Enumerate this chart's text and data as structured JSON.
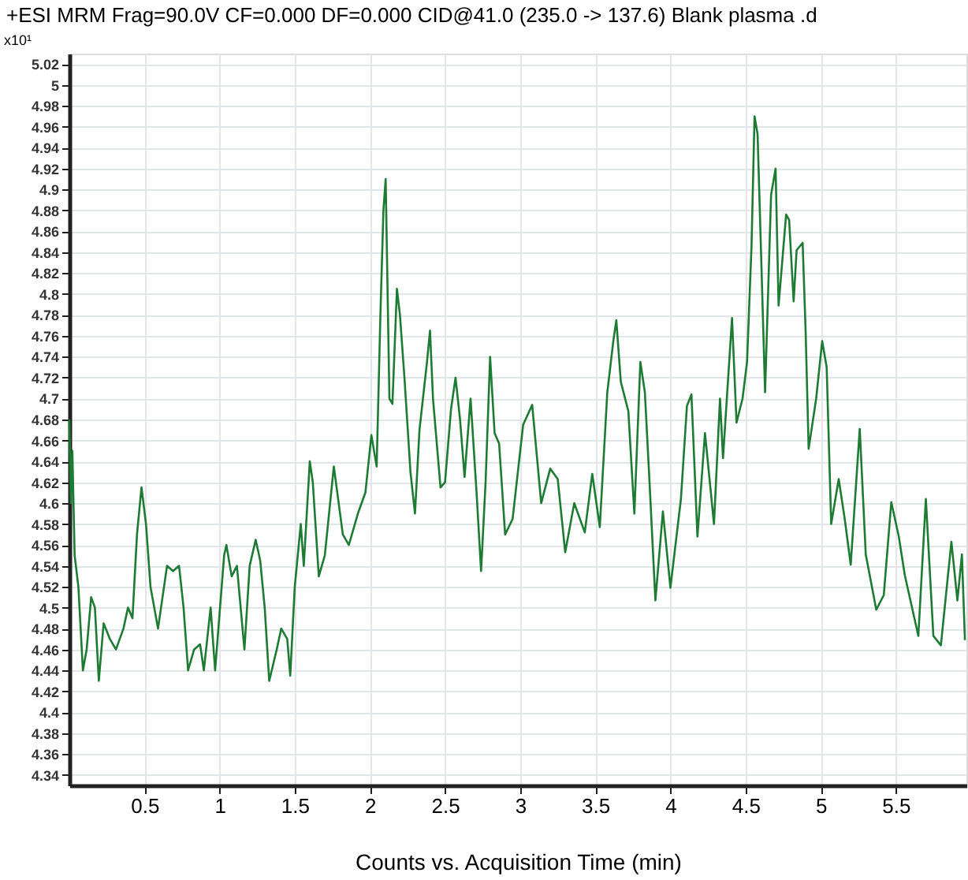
{
  "chart_data": {
    "type": "line",
    "title": "+ESI MRM Frag=90.0V CF=0.000 DF=0.000 CID@41.0 (235.0 -> 137.6) Blank plasma .d",
    "xlabel": "Counts vs. Acquisition Time (min)",
    "ylabel": "x10¹",
    "x": [
      0.0,
      0.01,
      0.02,
      0.035,
      0.06,
      0.09,
      0.115,
      0.145,
      0.17,
      0.196,
      0.228,
      0.27,
      0.31,
      0.36,
      0.39,
      0.42,
      0.45,
      0.48,
      0.51,
      0.54,
      0.59,
      0.65,
      0.69,
      0.73,
      0.76,
      0.79,
      0.83,
      0.87,
      0.895,
      0.94,
      0.97,
      1.03,
      1.045,
      1.08,
      1.115,
      1.165,
      1.2,
      1.24,
      1.27,
      1.3,
      1.33,
      1.38,
      1.41,
      1.45,
      1.47,
      1.5,
      1.54,
      1.56,
      1.6,
      1.62,
      1.66,
      1.7,
      1.76,
      1.82,
      1.86,
      1.92,
      1.97,
      2.01,
      2.045,
      2.07,
      2.09,
      2.105,
      2.13,
      2.15,
      2.18,
      2.2,
      2.23,
      2.27,
      2.3,
      2.33,
      2.38,
      2.4,
      2.42,
      2.47,
      2.5,
      2.54,
      2.57,
      2.6,
      2.63,
      2.67,
      2.71,
      2.74,
      2.77,
      2.8,
      2.83,
      2.86,
      2.9,
      2.95,
      3.02,
      3.08,
      3.14,
      3.2,
      3.25,
      3.3,
      3.36,
      3.43,
      3.48,
      3.53,
      3.58,
      3.62,
      3.64,
      3.67,
      3.72,
      3.76,
      3.8,
      3.83,
      3.86,
      3.9,
      3.95,
      4.0,
      4.07,
      4.11,
      4.14,
      4.18,
      4.23,
      4.29,
      4.33,
      4.35,
      4.41,
      4.44,
      4.48,
      4.51,
      4.54,
      4.56,
      4.58,
      4.6,
      4.63,
      4.67,
      4.7,
      4.72,
      4.77,
      4.79,
      4.82,
      4.84,
      4.88,
      4.9,
      4.92,
      4.97,
      5.01,
      5.04,
      5.07,
      5.12,
      5.16,
      5.2,
      5.26,
      5.3,
      5.37,
      5.42,
      5.47,
      5.52,
      5.56,
      5.65,
      5.7,
      5.75,
      5.8,
      5.87,
      5.91,
      5.94,
      5.96
    ],
    "series": [
      {
        "color": "#1e7b34",
        "values": [
          4.68,
          4.6,
          4.65,
          4.55,
          4.52,
          4.44,
          4.46,
          4.51,
          4.5,
          4.43,
          4.485,
          4.47,
          4.46,
          4.48,
          4.5,
          4.49,
          4.57,
          4.615,
          4.58,
          4.52,
          4.48,
          4.54,
          4.535,
          4.54,
          4.5,
          4.44,
          4.46,
          4.465,
          4.44,
          4.5,
          4.44,
          4.55,
          4.56,
          4.53,
          4.54,
          4.46,
          4.54,
          4.565,
          4.545,
          4.5,
          4.43,
          4.46,
          4.48,
          4.47,
          4.435,
          4.52,
          4.58,
          4.54,
          4.64,
          4.62,
          4.53,
          4.55,
          4.635,
          4.57,
          4.56,
          4.59,
          4.61,
          4.665,
          4.635,
          4.78,
          4.88,
          4.91,
          4.7,
          4.695,
          4.805,
          4.78,
          4.72,
          4.63,
          4.59,
          4.67,
          4.735,
          4.765,
          4.7,
          4.615,
          4.62,
          4.69,
          4.72,
          4.68,
          4.625,
          4.7,
          4.61,
          4.535,
          4.62,
          4.74,
          4.667,
          4.657,
          4.57,
          4.585,
          4.675,
          4.694,
          4.6,
          4.633,
          4.623,
          4.553,
          4.6,
          4.572,
          4.628,
          4.577,
          4.706,
          4.755,
          4.775,
          4.716,
          4.688,
          4.59,
          4.735,
          4.706,
          4.623,
          4.507,
          4.592,
          4.519,
          4.604,
          4.693,
          4.704,
          4.568,
          4.667,
          4.58,
          4.7,
          4.643,
          4.777,
          4.677,
          4.7,
          4.735,
          4.847,
          4.97,
          4.953,
          4.856,
          4.706,
          4.895,
          4.92,
          4.789,
          4.876,
          4.871,
          4.793,
          4.842,
          4.849,
          4.764,
          4.652,
          4.7,
          4.755,
          4.73,
          4.58,
          4.623,
          4.585,
          4.541,
          4.671,
          4.551,
          4.498,
          4.512,
          4.601,
          4.568,
          4.531,
          4.473,
          4.604,
          4.473,
          4.464,
          4.563,
          4.507,
          4.551,
          4.469
        ]
      }
    ],
    "xlim": [
      0,
      5.97
    ],
    "xticks": [
      0.5,
      1,
      1.5,
      2,
      2.5,
      3,
      3.5,
      4,
      4.5,
      5,
      5.5
    ],
    "ylim": [
      4.33,
      5.03
    ],
    "yticks": [
      4.34,
      4.36,
      4.38,
      4.4,
      4.42,
      4.44,
      4.46,
      4.48,
      4.5,
      4.52,
      4.54,
      4.56,
      4.58,
      4.6,
      4.62,
      4.64,
      4.66,
      4.68,
      4.7,
      4.72,
      4.74,
      4.76,
      4.78,
      4.8,
      4.82,
      4.84,
      4.86,
      4.88,
      4.9,
      4.92,
      4.94,
      4.96,
      4.98,
      5,
      5.02
    ],
    "grid": true,
    "marker": "none",
    "line_style": "solid"
  }
}
